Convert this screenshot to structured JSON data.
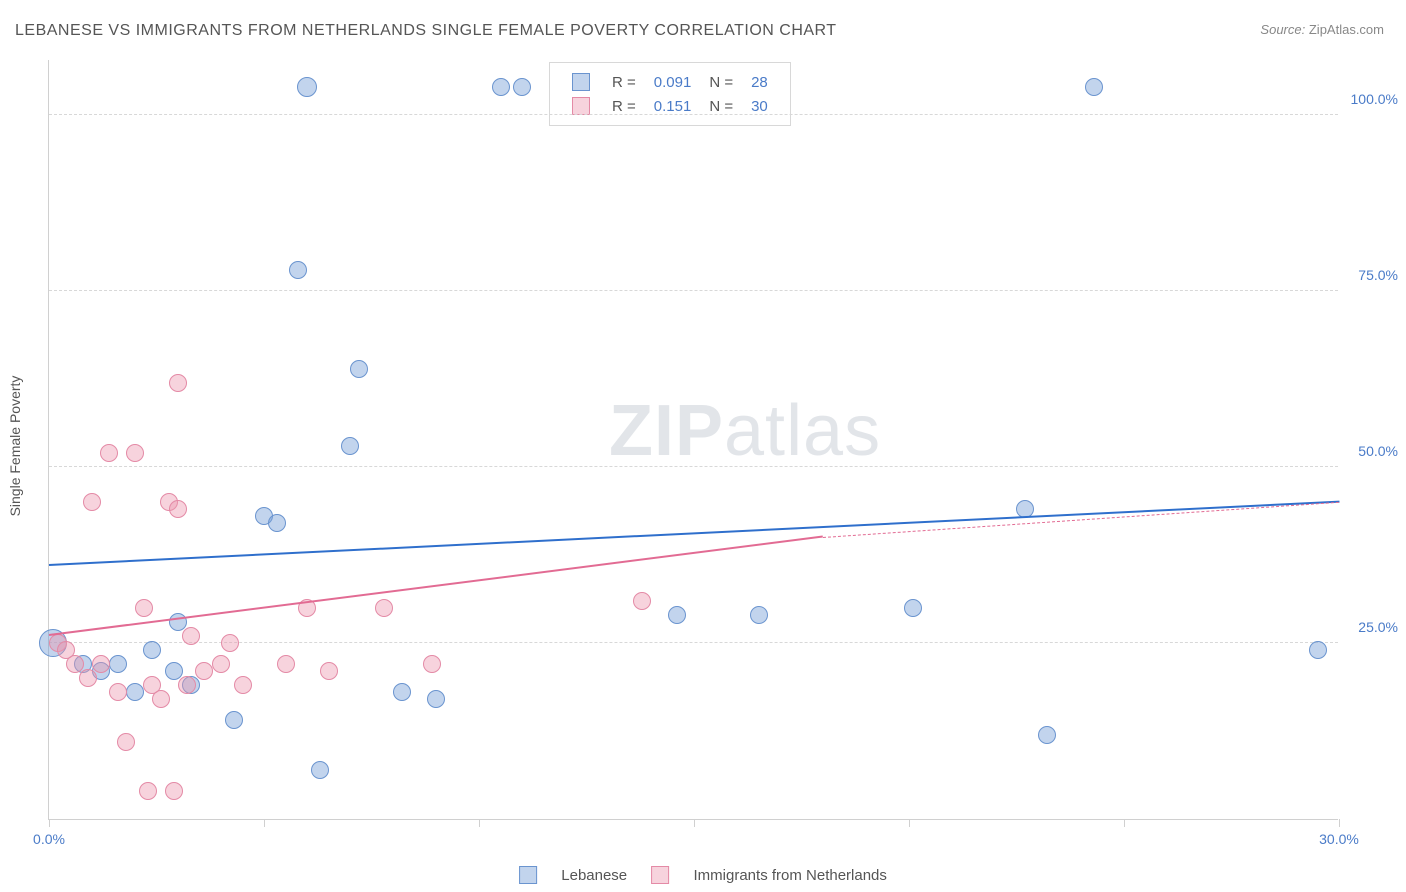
{
  "title": "LEBANESE VS IMMIGRANTS FROM NETHERLANDS SINGLE FEMALE POVERTY CORRELATION CHART",
  "source_prefix": "Source:",
  "source_name": "ZipAtlas.com",
  "ylabel": "Single Female Poverty",
  "watermark": {
    "zip": "ZIP",
    "atlas": "atlas"
  },
  "chart": {
    "type": "scatter",
    "background_color": "#ffffff",
    "grid_color": "#d8d8d8",
    "axis_color": "#d0d0d0",
    "tick_label_color": "#4a7bc8",
    "tick_label_fontsize": 14,
    "xlim": [
      0,
      30
    ],
    "ylim": [
      0,
      108
    ],
    "yticks": [
      {
        "value": 25,
        "label": "25.0%"
      },
      {
        "value": 50,
        "label": "50.0%"
      },
      {
        "value": 75,
        "label": "75.0%"
      },
      {
        "value": 100,
        "label": "100.0%"
      }
    ],
    "xticks": [
      {
        "value": 0,
        "label": "0.0%"
      },
      {
        "value": 5,
        "label": ""
      },
      {
        "value": 10,
        "label": ""
      },
      {
        "value": 15,
        "label": ""
      },
      {
        "value": 20,
        "label": ""
      },
      {
        "value": 25,
        "label": ""
      },
      {
        "value": 30,
        "label": "30.0%"
      }
    ],
    "series": [
      {
        "name": "Lebanese",
        "fill_color": "rgba(120,160,215,0.45)",
        "stroke_color": "#6a94cf",
        "line_color": "#2f6fcc",
        "marker_radius": 9,
        "R": "0.091",
        "N": "28",
        "trend": {
          "x1": 0,
          "y1": 36,
          "x2": 30,
          "y2": 45,
          "dash_from_x": 30
        },
        "points": [
          {
            "x": 0.1,
            "y": 25,
            "r": 14
          },
          {
            "x": 0.8,
            "y": 22
          },
          {
            "x": 1.2,
            "y": 21
          },
          {
            "x": 1.6,
            "y": 22
          },
          {
            "x": 2.0,
            "y": 18
          },
          {
            "x": 2.4,
            "y": 24
          },
          {
            "x": 2.9,
            "y": 21
          },
          {
            "x": 3.3,
            "y": 19
          },
          {
            "x": 3.0,
            "y": 28
          },
          {
            "x": 4.3,
            "y": 14
          },
          {
            "x": 5.0,
            "y": 43
          },
          {
            "x": 5.3,
            "y": 42
          },
          {
            "x": 5.8,
            "y": 78
          },
          {
            "x": 6.3,
            "y": 7
          },
          {
            "x": 6.0,
            "y": 104,
            "r": 10
          },
          {
            "x": 7.0,
            "y": 53
          },
          {
            "x": 7.2,
            "y": 64
          },
          {
            "x": 8.2,
            "y": 18
          },
          {
            "x": 9.0,
            "y": 17
          },
          {
            "x": 10.5,
            "y": 104
          },
          {
            "x": 11.0,
            "y": 104
          },
          {
            "x": 14.6,
            "y": 29
          },
          {
            "x": 16.5,
            "y": 29
          },
          {
            "x": 20.1,
            "y": 30
          },
          {
            "x": 22.7,
            "y": 44
          },
          {
            "x": 23.2,
            "y": 12
          },
          {
            "x": 24.3,
            "y": 104
          },
          {
            "x": 29.5,
            "y": 24
          }
        ]
      },
      {
        "name": "Immigrants from Netherlands",
        "fill_color": "rgba(235,150,175,0.42)",
        "stroke_color": "#e48aa6",
        "line_color": "#e26b93",
        "marker_radius": 9,
        "R": "0.151",
        "N": "30",
        "trend": {
          "x1": 0,
          "y1": 26,
          "x2": 18,
          "y2": 40,
          "dash_from_x": 18,
          "dash_to_x": 30,
          "dash_to_y": 45
        },
        "points": [
          {
            "x": 0.2,
            "y": 25
          },
          {
            "x": 0.4,
            "y": 24
          },
          {
            "x": 0.6,
            "y": 22
          },
          {
            "x": 0.9,
            "y": 20
          },
          {
            "x": 1.0,
            "y": 45
          },
          {
            "x": 1.2,
            "y": 22
          },
          {
            "x": 1.4,
            "y": 52
          },
          {
            "x": 1.6,
            "y": 18
          },
          {
            "x": 1.8,
            "y": 11
          },
          {
            "x": 2.0,
            "y": 52
          },
          {
            "x": 2.2,
            "y": 30
          },
          {
            "x": 2.4,
            "y": 19
          },
          {
            "x": 2.6,
            "y": 17
          },
          {
            "x": 2.8,
            "y": 45
          },
          {
            "x": 2.9,
            "y": 4
          },
          {
            "x": 2.3,
            "y": 4
          },
          {
            "x": 3.0,
            "y": 44
          },
          {
            "x": 3.0,
            "y": 62
          },
          {
            "x": 3.2,
            "y": 19
          },
          {
            "x": 3.3,
            "y": 26
          },
          {
            "x": 3.6,
            "y": 21
          },
          {
            "x": 4.0,
            "y": 22
          },
          {
            "x": 4.2,
            "y": 25
          },
          {
            "x": 4.5,
            "y": 19
          },
          {
            "x": 5.5,
            "y": 22
          },
          {
            "x": 6.0,
            "y": 30
          },
          {
            "x": 6.5,
            "y": 21
          },
          {
            "x": 7.8,
            "y": 30
          },
          {
            "x": 8.9,
            "y": 22
          },
          {
            "x": 13.8,
            "y": 31
          }
        ]
      }
    ],
    "legend_top": {
      "r_label": "R =",
      "n_label": "N ="
    },
    "legend_bottom": {
      "s1": "Lebanese",
      "s2": "Immigrants from Netherlands"
    }
  }
}
